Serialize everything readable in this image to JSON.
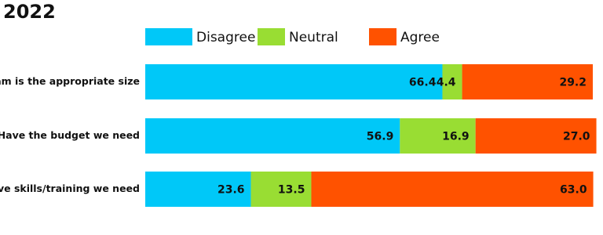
{
  "chart_data": {
    "type": "stacked-bar",
    "orientation": "horizontal",
    "title": "2022",
    "categories": [
      "Team is the appropriate size",
      "Have the budget we need",
      "Have skills/training we need"
    ],
    "xlim": [
      0,
      100
    ],
    "series": [
      {
        "name": "Disagree",
        "color": "#00c8f8",
        "values": [
          66.4,
          56.9,
          23.6
        ],
        "value_labels": [
          "66.4",
          "56.9",
          "23.6"
        ]
      },
      {
        "name": "Neutral",
        "color": "#99dd33",
        "values": [
          4.4,
          16.9,
          13.5
        ],
        "value_labels": [
          "4.4",
          "16.9",
          "13.5"
        ]
      },
      {
        "name": "Agree",
        "color": "#ff5200",
        "values": [
          29.2,
          27.0,
          63.0
        ],
        "value_labels": [
          "29.2",
          "27.0",
          "63.0"
        ]
      }
    ]
  }
}
